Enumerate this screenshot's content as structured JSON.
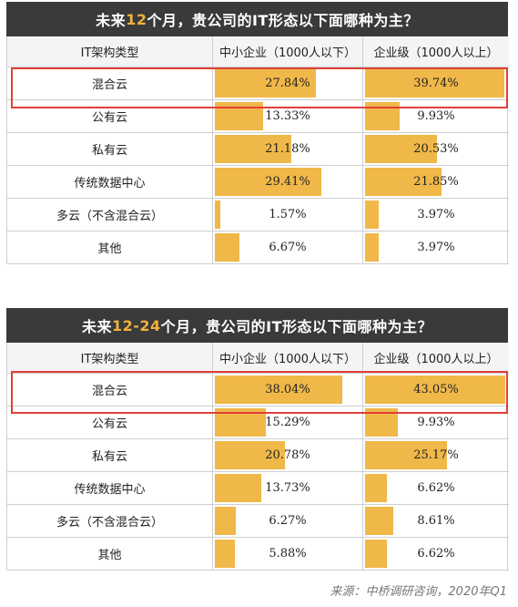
{
  "source": "来源：中桥调研咨询，2020年Q1",
  "charts": [
    {
      "title_before": "未来",
      "title_highlight": "12",
      "title_after": "个月，贵公司的IT形态以下面哪种为主？",
      "headers": [
        "IT架构类型",
        "中小企业（1000人以下）",
        "企业级（1000人以上）"
      ],
      "rows": [
        {
          "label": "混合云",
          "sme": "27.84%",
          "ent": "39.74%"
        },
        {
          "label": "公有云",
          "sme": "13.33%",
          "ent": "9.93%"
        },
        {
          "label": "私有云",
          "sme": "21.18%",
          "ent": "20.53%"
        },
        {
          "label": "传统数据中心",
          "sme": "29.41%",
          "ent": "21.85%"
        },
        {
          "label": "多云（不含混合云）",
          "sme": "1.57%",
          "ent": "3.97%"
        },
        {
          "label": "其他",
          "sme": "6.67%",
          "ent": "3.97%"
        }
      ]
    },
    {
      "title_before": "未来",
      "title_highlight": "12-24",
      "title_after": "个月，贵公司的IT形态以下面哪种为主？",
      "headers": [
        "IT架构类型",
        "中小企业（1000人以下）",
        "企业级（1000人以上）"
      ],
      "rows": [
        {
          "label": "混合云",
          "sme": "38.04%",
          "ent": "43.05%"
        },
        {
          "label": "公有云",
          "sme": "15.29%",
          "ent": "9.93%"
        },
        {
          "label": "私有云",
          "sme": "20.78%",
          "ent": "25.17%"
        },
        {
          "label": "传统数据中心",
          "sme": "13.73%",
          "ent": "6.62%"
        },
        {
          "label": "多云（不含混合云）",
          "sme": "6.27%",
          "ent": "8.61%"
        },
        {
          "label": "其他",
          "sme": "5.88%",
          "ent": "6.62%"
        }
      ]
    }
  ],
  "chart_data": [
    {
      "type": "table",
      "categories": [
        "混合云",
        "公有云",
        "私有云",
        "传统数据中心",
        "多云（不含混合云）",
        "其他"
      ],
      "series": [
        {
          "name": "中小企业（1000人以下）",
          "values": [
            27.84,
            13.33,
            21.18,
            29.41,
            1.57,
            6.67
          ]
        },
        {
          "name": "企业级（1000人以上）",
          "values": [
            39.74,
            9.93,
            20.53,
            21.85,
            3.97,
            3.97
          ]
        }
      ],
      "title": "未来12个月，贵公司的IT形态以下面哪种为主？",
      "xlabel": "IT架构类型",
      "ylabel": "",
      "ylim": [
        0,
        40
      ]
    },
    {
      "type": "table",
      "categories": [
        "混合云",
        "公有云",
        "私有云",
        "传统数据中心",
        "多云（不含混合云）",
        "其他"
      ],
      "series": [
        {
          "name": "中小企业（1000人以下）",
          "values": [
            38.04,
            15.29,
            20.78,
            13.73,
            6.27,
            5.88
          ]
        },
        {
          "name": "企业级（1000人以上）",
          "values": [
            43.05,
            9.93,
            25.17,
            6.62,
            8.61,
            6.62
          ]
        }
      ],
      "title": "未来12-24个月，贵公司的IT形态以下面哪种为主？",
      "xlabel": "IT架构类型",
      "ylabel": "",
      "ylim": [
        0,
        43.05
      ]
    }
  ],
  "colors": {
    "bar": "#f0b849",
    "title_bg": "#3a3a3a",
    "title_highlight": "#f0b23c",
    "highlight_box": "#e0403a"
  }
}
